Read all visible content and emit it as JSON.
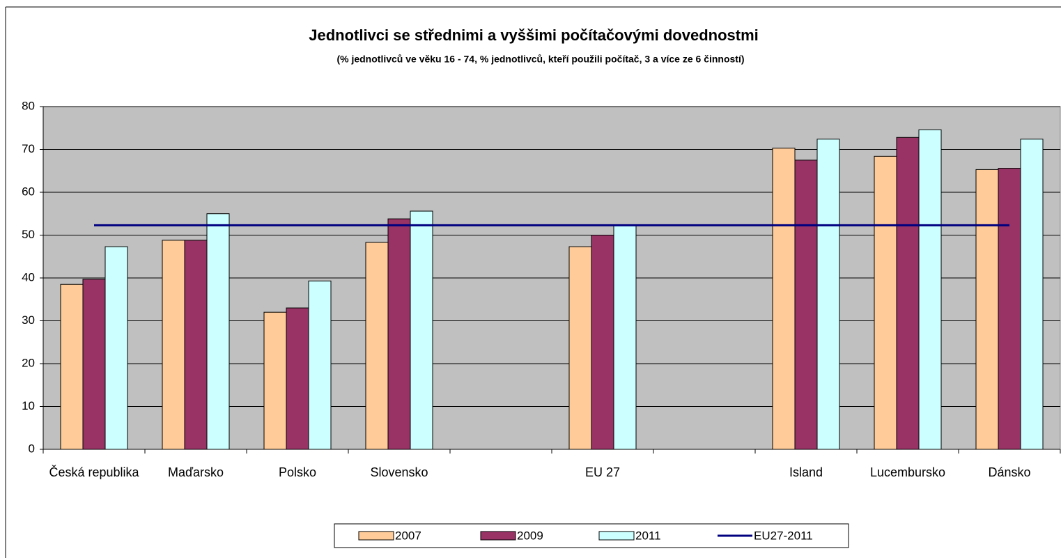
{
  "chart_data": {
    "type": "bar",
    "title": "Jednotlivci se střednimi a vyššimi počítačovými dovednostmi",
    "subtitle": "(% jednotlivců ve věku 16 - 74, % jednotlivců, kteří použili počítač, 3 a více ze 6 činností)",
    "categories": [
      "Česká republika",
      "Maďarsko",
      "Polsko",
      "Slovensko",
      null,
      "EU 27",
      null,
      "Island",
      "Lucembursko",
      "Dánsko"
    ],
    "series": [
      {
        "name": "2007",
        "color": "#ffcc99",
        "values": [
          38.5,
          48.8,
          32,
          48.3,
          null,
          47.3,
          null,
          70.3,
          68.4,
          65.3
        ]
      },
      {
        "name": "2009",
        "color": "#993366",
        "values": [
          39.7,
          48.8,
          33,
          53.8,
          null,
          50,
          null,
          67.5,
          72.8,
          65.6
        ]
      },
      {
        "name": "2011",
        "color": "#ccffff",
        "values": [
          47.3,
          55.0,
          39.3,
          55.6,
          null,
          52.3,
          null,
          72.4,
          74.6,
          72.4
        ]
      },
      {
        "name": "EU27-2011",
        "color": "#000080",
        "type": "line",
        "values": [
          52.3,
          52.3,
          52.3,
          52.3,
          52.3,
          52.3,
          52.3,
          52.3,
          52.3,
          52.3
        ]
      }
    ],
    "ylim": [
      0,
      80
    ],
    "yticks": [
      0,
      10,
      20,
      30,
      40,
      50,
      60,
      70,
      80
    ],
    "grid": true,
    "plot_background": "#c0c0c0",
    "legend": "bottom"
  }
}
